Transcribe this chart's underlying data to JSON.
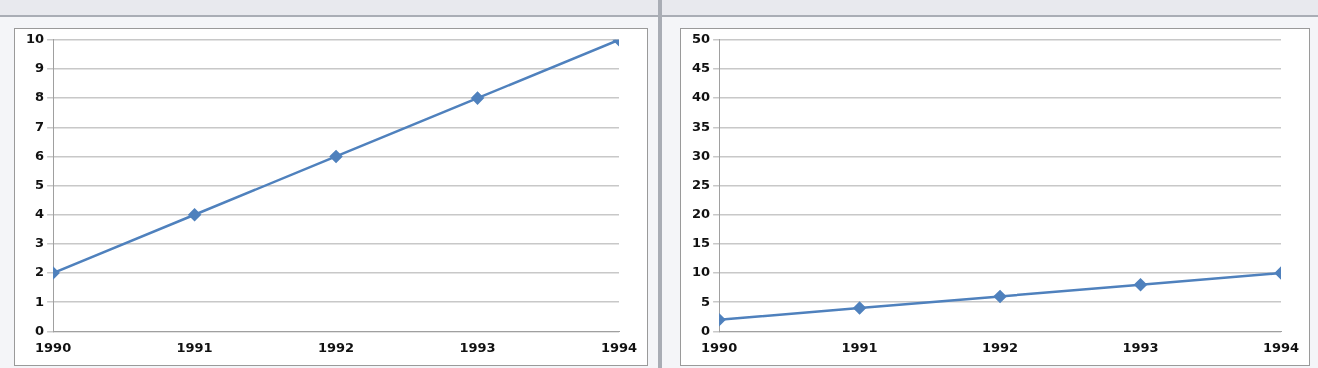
{
  "chart_data": [
    {
      "type": "line",
      "x": [
        1990,
        1991,
        1992,
        1993,
        1994
      ],
      "xlim": [
        1990,
        1994
      ],
      "xticks": [
        1990,
        1991,
        1992,
        1993,
        1994
      ],
      "ylim": [
        0,
        10
      ],
      "yticks": [
        0,
        1,
        2,
        3,
        4,
        5,
        6,
        7,
        8,
        9,
        10
      ],
      "grid": "y",
      "legend": false,
      "marker": "diamond",
      "line_style": "solid",
      "series": [
        {
          "color": "#4f81bd",
          "values": [
            2,
            4,
            6,
            8,
            10
          ]
        }
      ]
    },
    {
      "type": "line",
      "x": [
        1990,
        1991,
        1992,
        1993,
        1994
      ],
      "xlim": [
        1990,
        1994
      ],
      "xticks": [
        1990,
        1991,
        1992,
        1993,
        1994
      ],
      "ylim": [
        0,
        50
      ],
      "yticks": [
        0,
        5,
        10,
        15,
        20,
        25,
        30,
        35,
        40,
        45,
        50
      ],
      "grid": "y",
      "legend": false,
      "marker": "diamond",
      "line_style": "solid",
      "series": [
        {
          "color": "#4f81bd",
          "values": [
            2,
            4,
            6,
            8,
            10
          ]
        }
      ]
    }
  ]
}
